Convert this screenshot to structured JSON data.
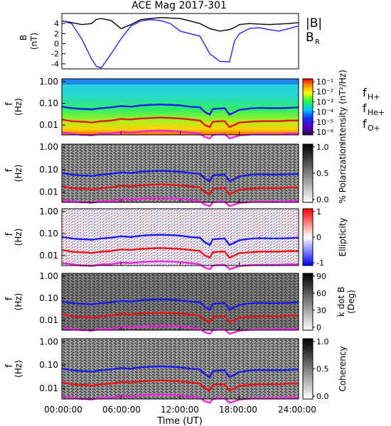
{
  "title": "ACE Mag 2017-301",
  "xlabel": "Time (UT)",
  "xticks": [
    "00:00:00",
    "06:00:00",
    "12:00:00",
    "18:00:00",
    "24:00:00"
  ],
  "colors": {
    "B_mag": "#000000",
    "B_R": "#2222ee",
    "f_H": "#1a1aee",
    "f_He": "#ee1111",
    "f_O": "#ee22dd"
  },
  "chart_data": [
    {
      "type": "line",
      "panel": "B",
      "ylabel_top": "B",
      "ylabel_bottom": "(nT)",
      "ylim": [
        -5,
        6
      ],
      "yticks": [
        "4",
        "2",
        "0",
        "-2",
        "-4"
      ],
      "legend": [
        "|B|",
        "B",
        "R"
      ],
      "x_hours": [
        0,
        1,
        2,
        2.5,
        3,
        3.5,
        4,
        5,
        6,
        7,
        8,
        9,
        10,
        11,
        12,
        13,
        14,
        15,
        16,
        17,
        17.5,
        18,
        19,
        20,
        21,
        22,
        23,
        24
      ],
      "series": [
        {
          "name": "|B|",
          "values": [
            4.5,
            4.2,
            3.8,
            3.9,
            4.0,
            4.8,
            5.0,
            4.6,
            3.0,
            3.8,
            4.8,
            5.0,
            5.2,
            5.1,
            5.0,
            4.5,
            4.0,
            3.0,
            2.5,
            2.8,
            3.2,
            3.8,
            4.0,
            3.9,
            3.8,
            3.9,
            4.0,
            4.2
          ]
        },
        {
          "name": "B_R",
          "values": [
            4.5,
            4.0,
            1.0,
            -1.0,
            -3.0,
            -4.5,
            -4.8,
            -2.0,
            1.0,
            3.5,
            4.5,
            4.8,
            4.6,
            4.0,
            2.5,
            2.0,
            1.5,
            -2.0,
            -3.5,
            -3.6,
            0.5,
            2.0,
            3.0,
            3.2,
            2.8,
            2.5,
            3.0,
            3.5
          ]
        }
      ]
    },
    {
      "type": "heatmap",
      "panel": "Intensity",
      "ylabel_top": "f",
      "ylabel_bottom": "(Hz)",
      "yticks": [
        "1.00",
        "0.10",
        "0.01"
      ],
      "colorbar_label": "Intensity (nT²/Hz)",
      "colorbar_ticks": [
        "10⁻¹",
        "10⁻²",
        "10⁻³",
        "10⁻⁴",
        "10⁻⁵",
        "10⁻⁶"
      ],
      "legend": [
        "f",
        "H+",
        "f",
        "He+",
        "f",
        "O+"
      ]
    },
    {
      "type": "heatmap",
      "panel": "Polarization",
      "ylabel_top": "f",
      "ylabel_bottom": "(Hz)",
      "yticks": [
        "1.00",
        "0.10",
        "0.01"
      ],
      "colorbar_label": "% Polarization",
      "colorbar_ticks": [
        "1.0",
        "0.5",
        "0.0"
      ]
    },
    {
      "type": "heatmap",
      "panel": "Ellipticity",
      "ylabel_top": "f",
      "ylabel_bottom": "(Hz)",
      "yticks": [
        "1.00",
        "0.10",
        "0.01"
      ],
      "colorbar_label": "Ellipticity",
      "colorbar_ticks": [
        "1",
        "0",
        "-1"
      ]
    },
    {
      "type": "heatmap",
      "panel": "k dot B",
      "ylabel_top": "f",
      "ylabel_bottom": "(Hz)",
      "yticks": [
        "1.00",
        "0.10",
        "0.01"
      ],
      "colorbar_label_top": "k dot B",
      "colorbar_label_bottom": "(Deg)",
      "colorbar_ticks": [
        "90",
        "60",
        "30",
        "0"
      ]
    },
    {
      "type": "heatmap",
      "panel": "Coherency",
      "ylabel_top": "f",
      "ylabel_bottom": "(Hz)",
      "yticks": [
        "1.00",
        "0.10",
        "0.01"
      ],
      "colorbar_label": "Coherency",
      "colorbar_ticks": [
        "1.0",
        "0.5",
        "0.0"
      ]
    }
  ],
  "gyrofrequency_curves": {
    "x_hours": [
      0,
      1,
      2,
      2.5,
      3,
      4,
      5,
      6,
      7,
      8,
      9,
      10,
      11,
      12,
      13,
      14,
      14.5,
      15,
      15.3,
      16,
      16.5,
      17,
      18,
      19,
      20,
      21,
      22,
      23,
      24
    ],
    "f_H_plus": [
      0.07,
      0.06,
      0.055,
      0.055,
      0.052,
      0.06,
      0.065,
      0.075,
      0.07,
      0.08,
      0.085,
      0.088,
      0.085,
      0.08,
      0.07,
      0.065,
      0.04,
      0.03,
      0.055,
      0.058,
      0.06,
      0.03,
      0.05,
      0.058,
      0.062,
      0.06,
      0.06,
      0.062,
      0.065
    ],
    "f_He_plus": [
      0.018,
      0.015,
      0.014,
      0.014,
      0.013,
      0.015,
      0.016,
      0.019,
      0.018,
      0.02,
      0.021,
      0.022,
      0.021,
      0.02,
      0.018,
      0.016,
      0.01,
      0.008,
      0.014,
      0.015,
      0.015,
      0.008,
      0.013,
      0.014,
      0.015,
      0.015,
      0.015,
      0.016,
      0.016
    ],
    "f_O_plus": [
      0.0045,
      0.004,
      0.0035,
      0.0035,
      0.0033,
      0.004,
      0.004,
      0.0048,
      0.0045,
      0.005,
      0.0053,
      0.0055,
      0.0053,
      0.005,
      0.0045,
      0.004,
      0.0028,
      0.0024,
      0.0035,
      0.0038,
      0.0038,
      0.0024,
      0.0033,
      0.0036,
      0.0038,
      0.0038,
      0.0038,
      0.004,
      0.004
    ]
  }
}
